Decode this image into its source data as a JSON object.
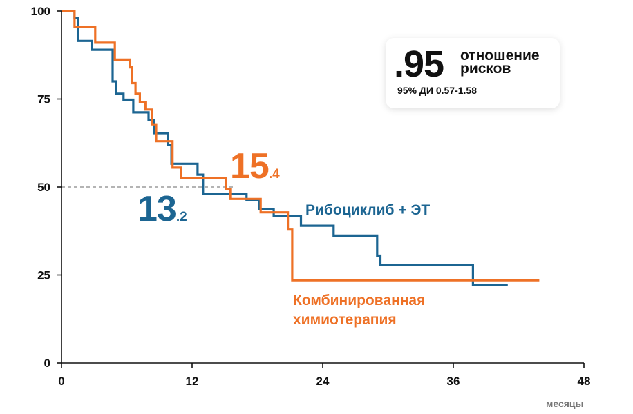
{
  "chart_data": {
    "type": "line",
    "subtype": "step",
    "xlabel": "месяцы",
    "ylabel": "",
    "xlim": [
      0,
      48
    ],
    "ylim": [
      0,
      100
    ],
    "xticks": [
      0,
      12,
      24,
      36,
      48
    ],
    "yticks": [
      0,
      25,
      50,
      75,
      100
    ],
    "reference_line": {
      "y": 50,
      "style": "dashed",
      "color": "#888888"
    },
    "series": [
      {
        "name": "Рибоциклиб + ЭТ",
        "color": "#1c6592",
        "median_big": "13",
        "median_small": ".2",
        "points": [
          [
            0,
            100
          ],
          [
            1.2,
            100
          ],
          [
            1.2,
            98
          ],
          [
            1.5,
            98
          ],
          [
            1.5,
            91.5
          ],
          [
            2.8,
            91.5
          ],
          [
            2.8,
            89
          ],
          [
            4.7,
            89
          ],
          [
            4.7,
            80
          ],
          [
            5.0,
            80
          ],
          [
            5.0,
            76.5
          ],
          [
            5.7,
            76.5
          ],
          [
            5.7,
            74.8
          ],
          [
            6.6,
            74.8
          ],
          [
            6.6,
            71.2
          ],
          [
            8.0,
            71.2
          ],
          [
            8.0,
            69
          ],
          [
            8.5,
            69
          ],
          [
            8.5,
            65.3
          ],
          [
            9.8,
            65.3
          ],
          [
            9.8,
            62
          ],
          [
            10.1,
            62
          ],
          [
            10.1,
            56.6
          ],
          [
            12.5,
            56.6
          ],
          [
            12.5,
            53.5
          ],
          [
            13.0,
            53.5
          ],
          [
            13.0,
            48
          ],
          [
            17.0,
            48
          ],
          [
            17.0,
            46.2
          ],
          [
            18.2,
            46.2
          ],
          [
            18.2,
            43.8
          ],
          [
            19.5,
            43.8
          ],
          [
            19.5,
            41.7
          ],
          [
            22.0,
            41.7
          ],
          [
            22.0,
            39
          ],
          [
            25.0,
            39
          ],
          [
            25.0,
            36.2
          ],
          [
            29.0,
            36.2
          ],
          [
            29.0,
            30.5
          ],
          [
            29.3,
            30.5
          ],
          [
            29.3,
            27.8
          ],
          [
            37.8,
            27.8
          ],
          [
            37.8,
            22.1
          ],
          [
            41.0,
            22.1
          ]
        ]
      },
      {
        "name": "Комбинированная химиотерапия",
        "color": "#ee7126",
        "median_big": "15",
        "median_small": ".4",
        "points": [
          [
            0,
            100
          ],
          [
            1.2,
            100
          ],
          [
            1.2,
            95.5
          ],
          [
            3.1,
            95.5
          ],
          [
            3.1,
            91
          ],
          [
            4.9,
            91
          ],
          [
            4.9,
            86.2
          ],
          [
            6.3,
            86.2
          ],
          [
            6.3,
            84
          ],
          [
            6.5,
            84
          ],
          [
            6.5,
            79.5
          ],
          [
            6.8,
            79.5
          ],
          [
            6.8,
            76.5
          ],
          [
            7.2,
            76.5
          ],
          [
            7.2,
            74.2
          ],
          [
            7.7,
            74.2
          ],
          [
            7.7,
            72
          ],
          [
            8.3,
            72
          ],
          [
            8.3,
            67.8
          ],
          [
            8.7,
            67.8
          ],
          [
            8.7,
            63
          ],
          [
            10.2,
            63
          ],
          [
            10.2,
            55.5
          ],
          [
            11.0,
            55.5
          ],
          [
            11.0,
            52.5
          ],
          [
            15.1,
            52.5
          ],
          [
            15.1,
            49.5
          ],
          [
            15.5,
            49.5
          ],
          [
            15.5,
            46.6
          ],
          [
            18.3,
            46.6
          ],
          [
            18.3,
            42.8
          ],
          [
            20.8,
            42.8
          ],
          [
            20.8,
            37.9
          ],
          [
            21.2,
            37.9
          ],
          [
            21.2,
            23.5
          ],
          [
            43.9,
            23.5
          ]
        ]
      }
    ]
  },
  "hazard": {
    "value": ".95",
    "label": "отношение рисков",
    "ci": "95% ДИ 0.57-1.58"
  },
  "labels": {
    "ribo": "Рибоциклиб + ЭТ",
    "chemo": "Комбинированная химиотерапия"
  },
  "median": {
    "ribo_big": "13",
    "ribo_small": ".2",
    "chemo_big": "15",
    "chemo_small": ".4"
  }
}
